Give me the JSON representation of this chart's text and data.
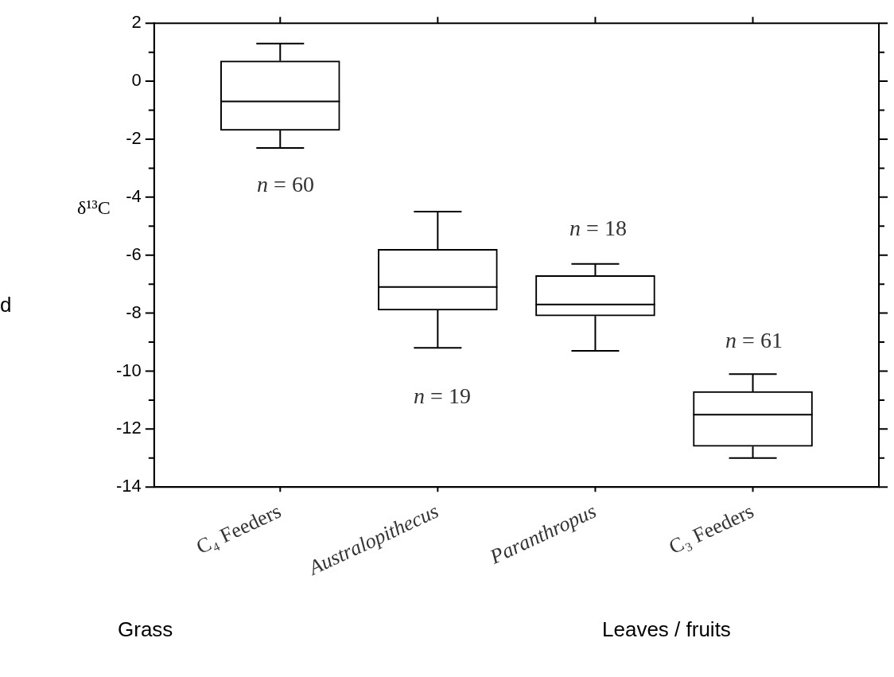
{
  "chart_data": {
    "type": "box",
    "ylabel": "δ¹³C",
    "categories": [
      "C₄ Feeders",
      "Australopithecus",
      "Paranthropus",
      "C₃ Feeders"
    ],
    "boxes": [
      {
        "low": -2.3,
        "q1": -1.7,
        "median": -0.7,
        "q3": 0.7,
        "high": 1.3
      },
      {
        "low": -9.2,
        "q1": -7.9,
        "median": -7.1,
        "q3": -5.8,
        "high": -4.5
      },
      {
        "low": -9.3,
        "q1": -8.1,
        "median": -7.7,
        "q3": -6.7,
        "high": -6.3
      },
      {
        "low": -13.0,
        "q1": -12.6,
        "median": -11.5,
        "q3": -10.7,
        "high": -10.1
      }
    ],
    "color": "#000000",
    "ylim": [
      -14,
      2
    ],
    "yticks": [
      -14,
      {
        "value": -13,
        "label": null
      },
      -12,
      {
        "value": -11,
        "label": null
      },
      -10,
      {
        "value": -9,
        "label": null
      },
      -8,
      {
        "value": -7,
        "label": null
      },
      -6,
      {
        "value": -5,
        "label": null
      },
      -4,
      {
        "value": -3,
        "label": null
      },
      -2,
      {
        "value": -1,
        "label": null
      },
      0,
      {
        "value": 1,
        "label": null
      },
      2
    ],
    "grid": false,
    "legend": false,
    "annotations": [
      "n = 60",
      "n = 19",
      "n = 18",
      "n = 61",
      "d",
      "Grass",
      "Leaves / fruits"
    ]
  }
}
